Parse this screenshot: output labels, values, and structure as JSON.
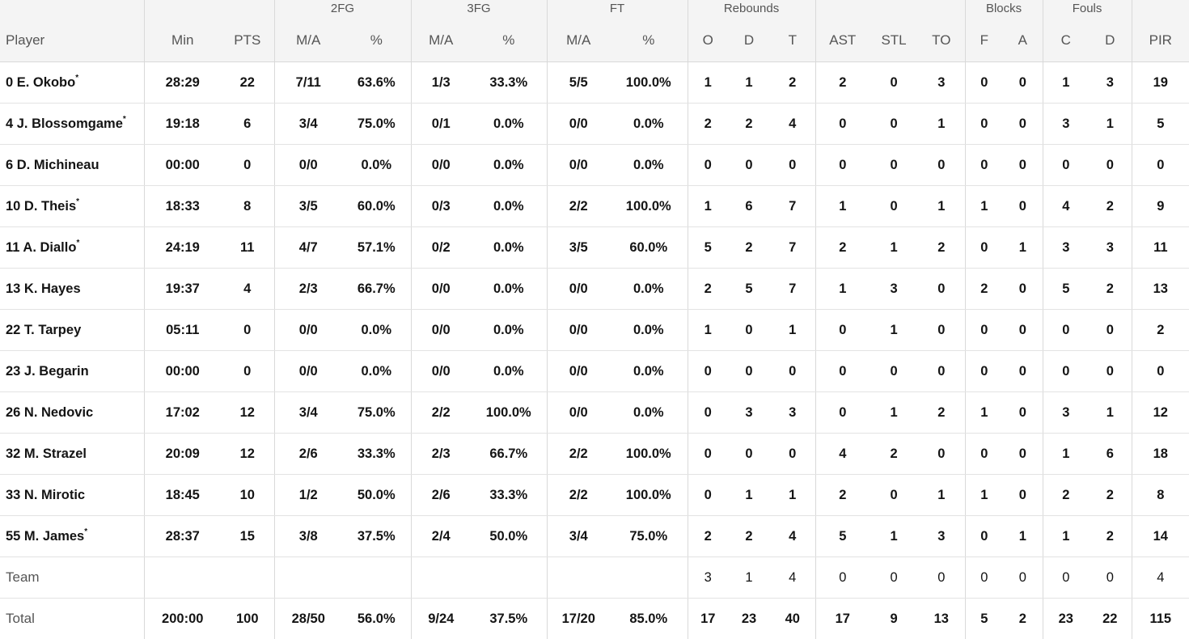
{
  "groups": {
    "fg2": "2FG",
    "fg3": "3FG",
    "ft": "FT",
    "rebounds": "Rebounds",
    "blocks": "Blocks",
    "fouls": "Fouls"
  },
  "columns": {
    "player": "Player",
    "min": "Min",
    "pts": "PTS",
    "fg2_ma": "M/A",
    "fg2_pct": "%",
    "fg3_ma": "M/A",
    "fg3_pct": "%",
    "ft_ma": "M/A",
    "ft_pct": "%",
    "reb_o": "O",
    "reb_d": "D",
    "reb_t": "T",
    "ast": "AST",
    "stl": "STL",
    "to": "TO",
    "blk_f": "F",
    "blk_a": "A",
    "foul_c": "C",
    "foul_d": "D",
    "pir": "PIR"
  },
  "starter_mark": "*",
  "rows": [
    {
      "player": "0 E. Okobo",
      "starter": true,
      "min": "28:29",
      "pts": "22",
      "fg2_ma": "7/11",
      "fg2_pct": "63.6%",
      "fg3_ma": "1/3",
      "fg3_pct": "33.3%",
      "ft_ma": "5/5",
      "ft_pct": "100.0%",
      "reb_o": "1",
      "reb_d": "1",
      "reb_t": "2",
      "ast": "2",
      "stl": "0",
      "to": "3",
      "blk_f": "0",
      "blk_a": "0",
      "foul_c": "1",
      "foul_d": "3",
      "pir": "19"
    },
    {
      "player": "4 J. Blossomgame",
      "starter": true,
      "min": "19:18",
      "pts": "6",
      "fg2_ma": "3/4",
      "fg2_pct": "75.0%",
      "fg3_ma": "0/1",
      "fg3_pct": "0.0%",
      "ft_ma": "0/0",
      "ft_pct": "0.0%",
      "reb_o": "2",
      "reb_d": "2",
      "reb_t": "4",
      "ast": "0",
      "stl": "0",
      "to": "1",
      "blk_f": "0",
      "blk_a": "0",
      "foul_c": "3",
      "foul_d": "1",
      "pir": "5"
    },
    {
      "player": "6 D. Michineau",
      "starter": false,
      "min": "00:00",
      "pts": "0",
      "fg2_ma": "0/0",
      "fg2_pct": "0.0%",
      "fg3_ma": "0/0",
      "fg3_pct": "0.0%",
      "ft_ma": "0/0",
      "ft_pct": "0.0%",
      "reb_o": "0",
      "reb_d": "0",
      "reb_t": "0",
      "ast": "0",
      "stl": "0",
      "to": "0",
      "blk_f": "0",
      "blk_a": "0",
      "foul_c": "0",
      "foul_d": "0",
      "pir": "0"
    },
    {
      "player": "10 D. Theis",
      "starter": true,
      "min": "18:33",
      "pts": "8",
      "fg2_ma": "3/5",
      "fg2_pct": "60.0%",
      "fg3_ma": "0/3",
      "fg3_pct": "0.0%",
      "ft_ma": "2/2",
      "ft_pct": "100.0%",
      "reb_o": "1",
      "reb_d": "6",
      "reb_t": "7",
      "ast": "1",
      "stl": "0",
      "to": "1",
      "blk_f": "1",
      "blk_a": "0",
      "foul_c": "4",
      "foul_d": "2",
      "pir": "9"
    },
    {
      "player": "11 A. Diallo",
      "starter": true,
      "min": "24:19",
      "pts": "11",
      "fg2_ma": "4/7",
      "fg2_pct": "57.1%",
      "fg3_ma": "0/2",
      "fg3_pct": "0.0%",
      "ft_ma": "3/5",
      "ft_pct": "60.0%",
      "reb_o": "5",
      "reb_d": "2",
      "reb_t": "7",
      "ast": "2",
      "stl": "1",
      "to": "2",
      "blk_f": "0",
      "blk_a": "1",
      "foul_c": "3",
      "foul_d": "3",
      "pir": "11"
    },
    {
      "player": "13 K. Hayes",
      "starter": false,
      "min": "19:37",
      "pts": "4",
      "fg2_ma": "2/3",
      "fg2_pct": "66.7%",
      "fg3_ma": "0/0",
      "fg3_pct": "0.0%",
      "ft_ma": "0/0",
      "ft_pct": "0.0%",
      "reb_o": "2",
      "reb_d": "5",
      "reb_t": "7",
      "ast": "1",
      "stl": "3",
      "to": "0",
      "blk_f": "2",
      "blk_a": "0",
      "foul_c": "5",
      "foul_d": "2",
      "pir": "13"
    },
    {
      "player": "22 T. Tarpey",
      "starter": false,
      "min": "05:11",
      "pts": "0",
      "fg2_ma": "0/0",
      "fg2_pct": "0.0%",
      "fg3_ma": "0/0",
      "fg3_pct": "0.0%",
      "ft_ma": "0/0",
      "ft_pct": "0.0%",
      "reb_o": "1",
      "reb_d": "0",
      "reb_t": "1",
      "ast": "0",
      "stl": "1",
      "to": "0",
      "blk_f": "0",
      "blk_a": "0",
      "foul_c": "0",
      "foul_d": "0",
      "pir": "2"
    },
    {
      "player": "23 J. Begarin",
      "starter": false,
      "min": "00:00",
      "pts": "0",
      "fg2_ma": "0/0",
      "fg2_pct": "0.0%",
      "fg3_ma": "0/0",
      "fg3_pct": "0.0%",
      "ft_ma": "0/0",
      "ft_pct": "0.0%",
      "reb_o": "0",
      "reb_d": "0",
      "reb_t": "0",
      "ast": "0",
      "stl": "0",
      "to": "0",
      "blk_f": "0",
      "blk_a": "0",
      "foul_c": "0",
      "foul_d": "0",
      "pir": "0"
    },
    {
      "player": "26 N. Nedovic",
      "starter": false,
      "min": "17:02",
      "pts": "12",
      "fg2_ma": "3/4",
      "fg2_pct": "75.0%",
      "fg3_ma": "2/2",
      "fg3_pct": "100.0%",
      "ft_ma": "0/0",
      "ft_pct": "0.0%",
      "reb_o": "0",
      "reb_d": "3",
      "reb_t": "3",
      "ast": "0",
      "stl": "1",
      "to": "2",
      "blk_f": "1",
      "blk_a": "0",
      "foul_c": "3",
      "foul_d": "1",
      "pir": "12"
    },
    {
      "player": "32 M. Strazel",
      "starter": false,
      "min": "20:09",
      "pts": "12",
      "fg2_ma": "2/6",
      "fg2_pct": "33.3%",
      "fg3_ma": "2/3",
      "fg3_pct": "66.7%",
      "ft_ma": "2/2",
      "ft_pct": "100.0%",
      "reb_o": "0",
      "reb_d": "0",
      "reb_t": "0",
      "ast": "4",
      "stl": "2",
      "to": "0",
      "blk_f": "0",
      "blk_a": "0",
      "foul_c": "1",
      "foul_d": "6",
      "pir": "18"
    },
    {
      "player": "33 N. Mirotic",
      "starter": false,
      "min": "18:45",
      "pts": "10",
      "fg2_ma": "1/2",
      "fg2_pct": "50.0%",
      "fg3_ma": "2/6",
      "fg3_pct": "33.3%",
      "ft_ma": "2/2",
      "ft_pct": "100.0%",
      "reb_o": "0",
      "reb_d": "1",
      "reb_t": "1",
      "ast": "2",
      "stl": "0",
      "to": "1",
      "blk_f": "1",
      "blk_a": "0",
      "foul_c": "2",
      "foul_d": "2",
      "pir": "8"
    },
    {
      "player": "55 M. James",
      "starter": true,
      "min": "28:37",
      "pts": "15",
      "fg2_ma": "3/8",
      "fg2_pct": "37.5%",
      "fg3_ma": "2/4",
      "fg3_pct": "50.0%",
      "ft_ma": "3/4",
      "ft_pct": "75.0%",
      "reb_o": "2",
      "reb_d": "2",
      "reb_t": "4",
      "ast": "5",
      "stl": "1",
      "to": "3",
      "blk_f": "0",
      "blk_a": "1",
      "foul_c": "1",
      "foul_d": "2",
      "pir": "14"
    }
  ],
  "team": {
    "player": "Team",
    "min": "",
    "pts": "",
    "fg2_ma": "",
    "fg2_pct": "",
    "fg3_ma": "",
    "fg3_pct": "",
    "ft_ma": "",
    "ft_pct": "",
    "reb_o": "3",
    "reb_d": "1",
    "reb_t": "4",
    "ast": "0",
    "stl": "0",
    "to": "0",
    "blk_f": "0",
    "blk_a": "0",
    "foul_c": "0",
    "foul_d": "0",
    "pir": "4"
  },
  "total": {
    "player": "Total",
    "min": "200:00",
    "pts": "100",
    "fg2_ma": "28/50",
    "fg2_pct": "56.0%",
    "fg3_ma": "9/24",
    "fg3_pct": "37.5%",
    "ft_ma": "17/20",
    "ft_pct": "85.0%",
    "reb_o": "17",
    "reb_d": "23",
    "reb_t": "40",
    "ast": "17",
    "stl": "9",
    "to": "13",
    "blk_f": "5",
    "blk_a": "2",
    "foul_c": "23",
    "foul_d": "22",
    "pir": "115"
  }
}
